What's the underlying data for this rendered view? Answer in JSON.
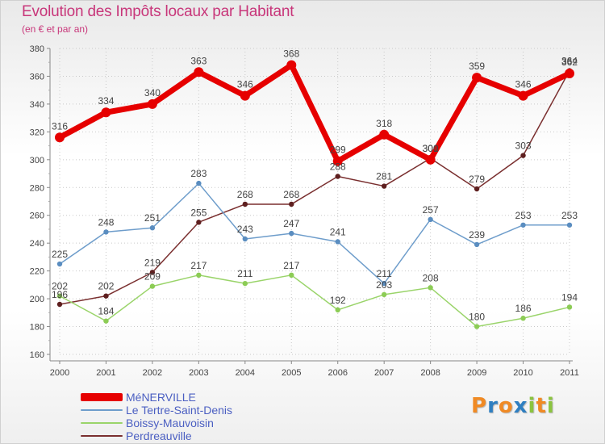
{
  "title": "Evolution des Impôts locaux par Habitant",
  "subtitle": "(en € et par an)",
  "logo": {
    "letters": [
      "P",
      "r",
      "o",
      "x",
      "i",
      "t",
      "i"
    ],
    "colors": [
      "#f08a24",
      "#2f7fc1",
      "#f08a24",
      "#2f7fc1",
      "#8bc43f",
      "#f08a24",
      "#8bc43f"
    ]
  },
  "chart_data": {
    "type": "line",
    "title": "Evolution des Impôts locaux par Habitant",
    "subtitle": "(en € et par an)",
    "xlabel": "",
    "ylabel": "",
    "ylim": [
      160,
      380
    ],
    "yticks": [
      160,
      180,
      200,
      220,
      240,
      260,
      280,
      300,
      320,
      340,
      360,
      380
    ],
    "categories": [
      "2000",
      "2001",
      "2002",
      "2003",
      "2004",
      "2005",
      "2006",
      "2007",
      "2008",
      "2009",
      "2010",
      "2011"
    ],
    "series": [
      {
        "name": "MéNERVILLE",
        "color": "#e60000",
        "values": [
          316,
          334,
          340,
          363,
          346,
          368,
          299,
          318,
          300,
          359,
          346,
          362
        ]
      },
      {
        "name": "Le Tertre-Saint-Denis",
        "color": "#6e9dcb",
        "values": [
          225,
          248,
          251,
          283,
          243,
          247,
          241,
          211,
          257,
          239,
          253,
          253
        ]
      },
      {
        "name": "Boissy-Mauvoisin",
        "color": "#9ad46a",
        "values": [
          202,
          184,
          209,
          217,
          211,
          217,
          192,
          203,
          208,
          180,
          186,
          194
        ]
      },
      {
        "name": "Perdreauville",
        "color": "#7a2f2f",
        "values": [
          196,
          202,
          219,
          255,
          268,
          268,
          288,
          281,
          301,
          279,
          303,
          364
        ]
      }
    ],
    "legend_position": "bottom-left"
  }
}
